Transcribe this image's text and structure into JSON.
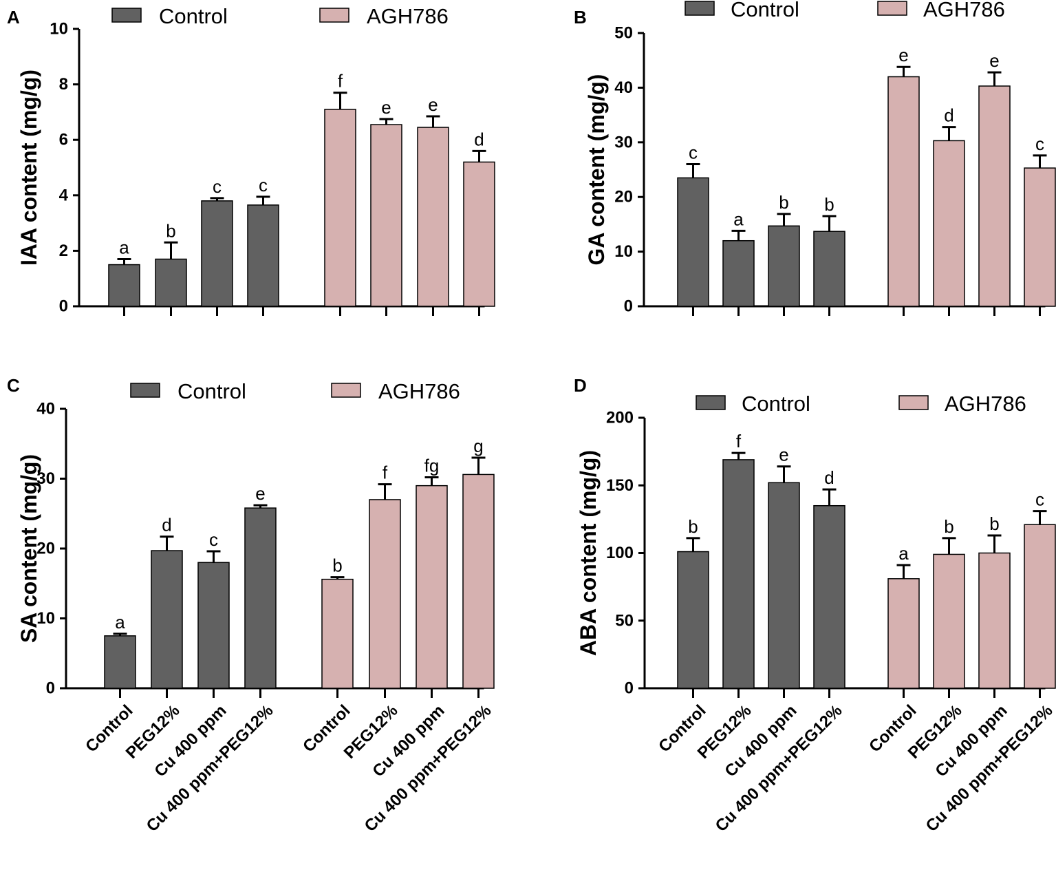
{
  "figure": {
    "colors": {
      "control": "#616161",
      "agh": "#d6b1b0"
    },
    "legend": {
      "series": [
        "Control",
        "AGH786"
      ]
    },
    "categories": [
      "Control",
      "PEG12%",
      "Cu 400 ppm",
      "Cu 400 ppm+PEG12%"
    ]
  },
  "chart_data": [
    {
      "panel": "A",
      "type": "bar",
      "ylabel": "IAA content (mg/g)",
      "ylim": [
        0,
        10
      ],
      "yticks": [
        0,
        2,
        4,
        6,
        8,
        10
      ],
      "categories": [
        "Control",
        "PEG12%",
        "Cu 400 ppm",
        "Cu 400 ppm+PEG12%"
      ],
      "show_categories": false,
      "series": [
        {
          "name": "Control",
          "values": [
            1.5,
            1.7,
            3.8,
            3.65
          ],
          "errors": [
            0.2,
            0.6,
            0.1,
            0.3
          ],
          "letters": [
            "a",
            "b",
            "c",
            "c"
          ]
        },
        {
          "name": "AGH786",
          "values": [
            7.1,
            6.55,
            6.45,
            5.2
          ],
          "errors": [
            0.6,
            0.2,
            0.4,
            0.4
          ],
          "letters": [
            "f",
            "e",
            "e",
            "d"
          ]
        }
      ]
    },
    {
      "panel": "B",
      "type": "bar",
      "ylabel": "GA content (mg/g)",
      "ylim": [
        0,
        50
      ],
      "yticks": [
        0,
        10,
        20,
        30,
        40,
        50
      ],
      "categories": [
        "Control",
        "PEG12%",
        "Cu 400 ppm",
        "Cu 400 ppm+PEG12%"
      ],
      "show_categories": false,
      "series": [
        {
          "name": "Control",
          "values": [
            23.5,
            12,
            14.7,
            13.7
          ],
          "errors": [
            2.5,
            1.8,
            2.2,
            2.8
          ],
          "letters": [
            "c",
            "a",
            "b",
            "b"
          ]
        },
        {
          "name": "AGH786",
          "values": [
            42,
            30.3,
            40.3,
            25.3
          ],
          "errors": [
            1.8,
            2.5,
            2.5,
            2.3
          ],
          "letters": [
            "e",
            "d",
            "e",
            "c"
          ]
        }
      ]
    },
    {
      "panel": "C",
      "type": "bar",
      "ylabel": "SA content (mg/g)",
      "ylim": [
        0,
        40
      ],
      "yticks": [
        0,
        10,
        20,
        30,
        40
      ],
      "categories": [
        "Control",
        "PEG12%",
        "Cu 400 ppm",
        "Cu 400 ppm+PEG12%"
      ],
      "show_categories": true,
      "series": [
        {
          "name": "Control",
          "values": [
            7.5,
            19.7,
            18,
            25.8
          ],
          "errors": [
            0.3,
            2,
            1.6,
            0.4
          ],
          "letters": [
            "a",
            "d",
            "c",
            "e"
          ]
        },
        {
          "name": "AGH786",
          "values": [
            15.6,
            27,
            29,
            30.6
          ],
          "errors": [
            0.3,
            2.2,
            1.2,
            2.4
          ],
          "letters": [
            "b",
            "f",
            "fg",
            "g"
          ]
        }
      ]
    },
    {
      "panel": "D",
      "type": "bar",
      "ylabel": "ABA content (mg/g)",
      "ylim": [
        0,
        200
      ],
      "yticks": [
        0,
        50,
        100,
        150,
        200
      ],
      "categories": [
        "Control",
        "PEG12%",
        "Cu 400 ppm",
        "Cu 400 ppm+PEG12%"
      ],
      "show_categories": true,
      "series": [
        {
          "name": "Control",
          "values": [
            101,
            169,
            152,
            135
          ],
          "errors": [
            10,
            5,
            12,
            12
          ],
          "letters": [
            "b",
            "f",
            "e",
            "d"
          ]
        },
        {
          "name": "AGH786",
          "values": [
            81,
            99,
            100,
            121
          ],
          "errors": [
            10,
            12,
            13,
            10
          ],
          "letters": [
            "a",
            "b",
            "b",
            "c"
          ]
        }
      ]
    }
  ]
}
